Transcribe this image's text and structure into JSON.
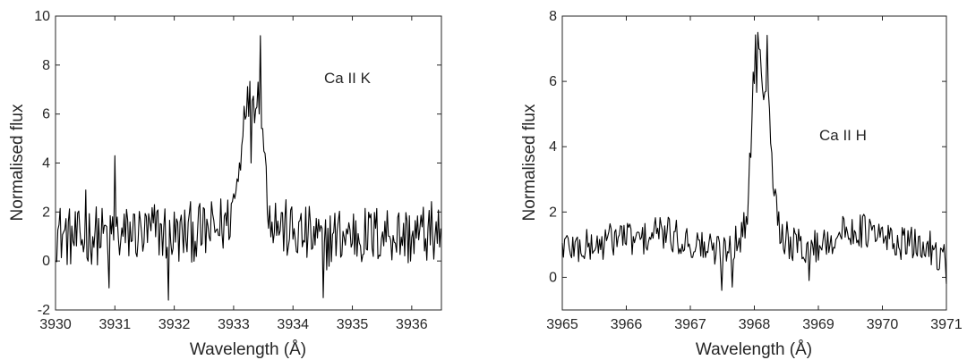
{
  "chart_data": [
    {
      "type": "line",
      "title": "",
      "annotation": "Ca II K",
      "xlabel": "Wavelength (Å)",
      "ylabel": "Normalised flux",
      "xlim": [
        3930,
        3936.5
      ],
      "ylim": [
        -2,
        10
      ],
      "xticks": [
        "3930",
        "3931",
        "3932",
        "3933",
        "3934",
        "3935",
        "3936"
      ],
      "yticks": [
        "-2",
        "0",
        "2",
        "4",
        "6",
        "8",
        "10"
      ],
      "grid": false,
      "line_color": "#000000",
      "series": [
        {
          "x": [
            3930.0,
            3930.2,
            3930.4,
            3930.6,
            3930.8,
            3931.0,
            3931.1,
            3931.3,
            3931.5,
            3931.7,
            3931.9,
            3932.1,
            3932.3,
            3932.5,
            3932.7,
            3932.9,
            3933.0,
            3933.1,
            3933.15,
            3933.2,
            3933.25,
            3933.3,
            3933.35,
            3933.4,
            3933.45,
            3933.5,
            3933.55,
            3933.6,
            3933.8,
            3934.0,
            3934.3,
            3934.5,
            3934.7,
            3935.0,
            3935.3,
            3935.6,
            3935.9,
            3936.2,
            3936.5
          ],
          "values": [
            1.2,
            1.0,
            0.8,
            1.1,
            1.0,
            1.3,
            0.9,
            1.2,
            1.0,
            1.3,
            1.1,
            1.0,
            1.2,
            1.1,
            1.3,
            1.6,
            2.4,
            3.8,
            5.5,
            6.8,
            6.3,
            6.9,
            6.5,
            7.0,
            6.2,
            5.0,
            3.4,
            2.0,
            1.4,
            1.1,
            1.0,
            0.8,
            1.0,
            1.1,
            1.0,
            1.2,
            1.0,
            1.1,
            1.3
          ],
          "spikes": [
            {
              "x": 3931.0,
              "y": 4.3
            },
            {
              "x": 3930.5,
              "y": 2.9
            },
            {
              "x": 3930.9,
              "y": -1.1
            },
            {
              "x": 3931.9,
              "y": -1.6
            },
            {
              "x": 3934.5,
              "y": -1.5
            },
            {
              "x": 3933.45,
              "y": 9.2
            },
            {
              "x": 3933.3,
              "y": 4.0
            }
          ]
        }
      ]
    },
    {
      "type": "line",
      "title": "",
      "annotation": "Ca II H",
      "xlabel": "Wavelength (Å)",
      "ylabel": "Normalised flux",
      "xlim": [
        3965,
        3971
      ],
      "ylim": [
        -1,
        8
      ],
      "xticks": [
        "3965",
        "3966",
        "3967",
        "3968",
        "3969",
        "3970",
        "3971"
      ],
      "yticks": [
        "0",
        "2",
        "4",
        "6",
        "8"
      ],
      "grid": false,
      "line_color": "#000000",
      "series": [
        {
          "x": [
            3965.0,
            3965.3,
            3965.6,
            3965.9,
            3966.2,
            3966.5,
            3966.8,
            3967.1,
            3967.4,
            3967.6,
            3967.8,
            3967.9,
            3967.95,
            3968.0,
            3968.05,
            3968.1,
            3968.15,
            3968.2,
            3968.25,
            3968.3,
            3968.4,
            3968.6,
            3968.9,
            3969.2,
            3969.6,
            3970.0,
            3970.4,
            3970.8,
            3971.0
          ],
          "values": [
            1.0,
            0.9,
            1.0,
            1.3,
            1.1,
            1.4,
            1.2,
            1.0,
            0.8,
            1.0,
            1.2,
            2.0,
            4.5,
            6.8,
            6.4,
            6.9,
            6.2,
            6.7,
            5.2,
            3.0,
            1.4,
            1.0,
            0.9,
            1.2,
            1.5,
            1.2,
            1.0,
            0.9,
            0.5
          ],
          "spikes": [
            {
              "x": 3968.05,
              "y": 7.5
            },
            {
              "x": 3967.5,
              "y": -0.4
            },
            {
              "x": 3967.65,
              "y": -0.3
            },
            {
              "x": 3968.85,
              "y": -0.1
            },
            {
              "x": 3971.0,
              "y": -0.2
            }
          ]
        }
      ]
    }
  ]
}
